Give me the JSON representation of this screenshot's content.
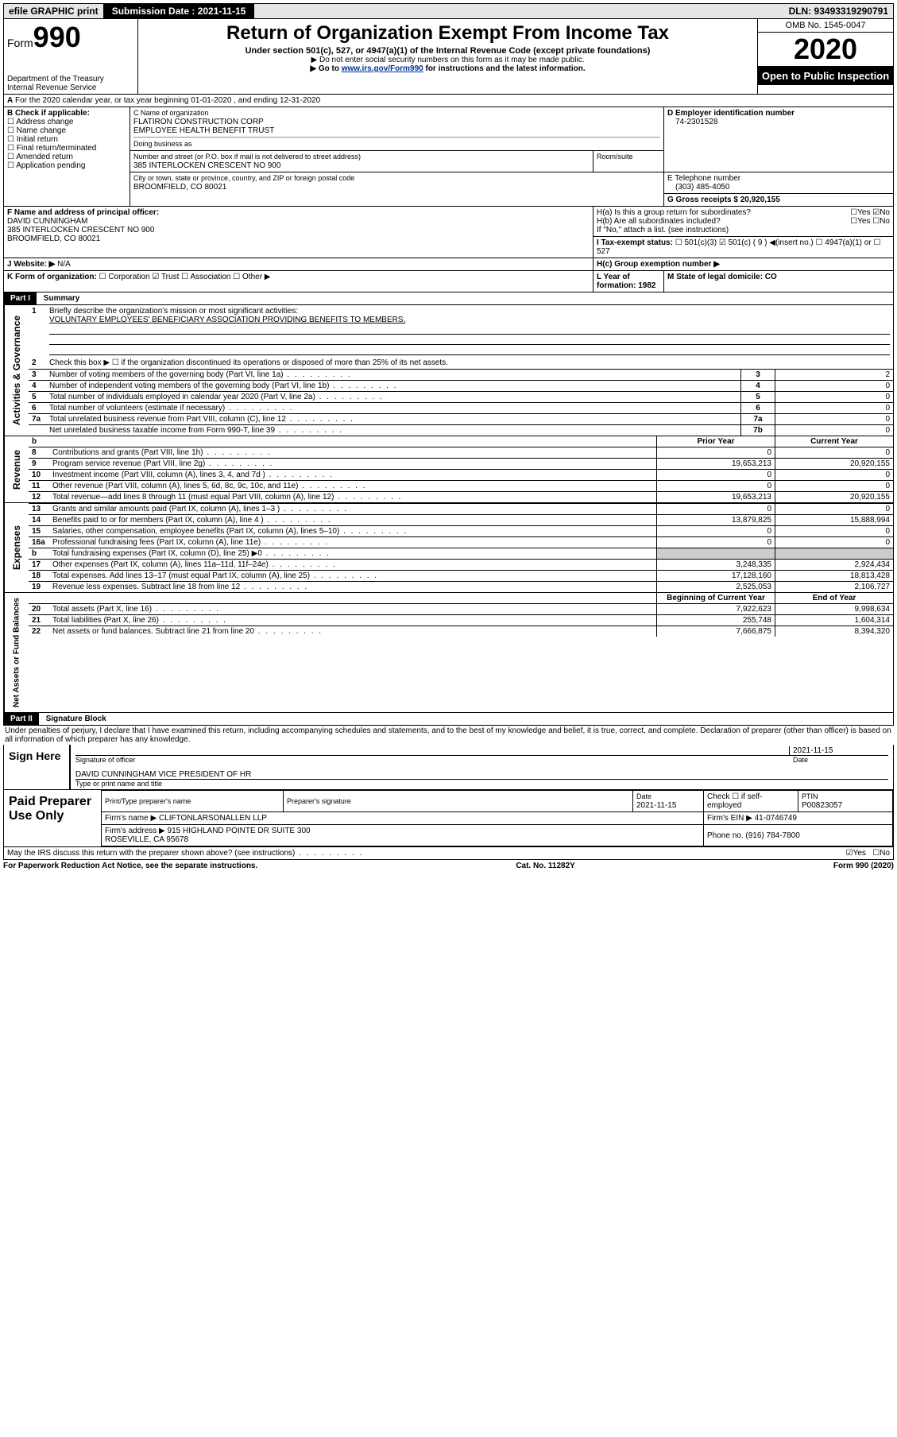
{
  "top": {
    "efile": "efile GRAPHIC print",
    "sub_label": "Submission Date : 2021-11-15",
    "dln": "DLN: 93493319290791"
  },
  "header": {
    "form_label": "Form",
    "form_num": "990",
    "dept": "Department of the Treasury\nInternal Revenue Service",
    "title": "Return of Organization Exempt From Income Tax",
    "sub1": "Under section 501(c), 527, or 4947(a)(1) of the Internal Revenue Code (except private foundations)",
    "sub2": "▶ Do not enter social security numbers on this form as it may be made public.",
    "sub3_pre": "▶ Go to ",
    "sub3_link": "www.irs.gov/Form990",
    "sub3_post": " for instructions and the latest information.",
    "omb": "OMB No. 1545-0047",
    "year": "2020",
    "open": "Open to Public Inspection"
  },
  "A": {
    "text": "For the 2020 calendar year, or tax year beginning 01-01-2020   , and ending 12-31-2020"
  },
  "B": {
    "label": "B Check if applicable:",
    "opts": [
      "Address change",
      "Name change",
      "Initial return",
      "Final return/terminated",
      "Amended return",
      "Application pending"
    ]
  },
  "C": {
    "name_label": "C Name of organization",
    "name": "FLATIRON CONSTRUCTION CORP\nEMPLOYEE HEALTH BENEFIT TRUST",
    "dba_label": "Doing business as",
    "addr_label": "Number and street (or P.O. box if mail is not delivered to street address)",
    "room_label": "Room/suite",
    "addr": "385 INTERLOCKEN CRESCENT NO 900",
    "city_label": "City or town, state or province, country, and ZIP or foreign postal code",
    "city": "BROOMFIELD, CO  80021"
  },
  "D": {
    "label": "D Employer identification number",
    "value": "74-2301528"
  },
  "E": {
    "label": "E Telephone number",
    "value": "(303) 485-4050"
  },
  "G": {
    "label": "G Gross receipts $ 20,920,155"
  },
  "F": {
    "label": "F  Name and address of principal officer:",
    "name": "DAVID CUNNINGHAM\n385 INTERLOCKEN CRESCENT NO 900\nBROOMFIELD, CO  80021"
  },
  "H": {
    "a": "H(a)  Is this a group return for subordinates?",
    "a_yes": "Yes",
    "a_no": "No",
    "b": "H(b)  Are all subordinates included?",
    "b_yes": "Yes",
    "b_no": "No",
    "b_note": "If \"No,\" attach a list. (see instructions)",
    "c": "H(c)  Group exemption number ▶"
  },
  "I": {
    "label": "I  Tax-exempt status:",
    "opts": [
      "501(c)(3)",
      "501(c) ( 9 ) ◀(insert no.)",
      "4947(a)(1) or",
      "527"
    ],
    "checked_idx": 1
  },
  "J": {
    "label": "J  Website: ▶",
    "value": "N/A"
  },
  "K": {
    "label": "K Form of organization:",
    "opts": [
      "Corporation",
      "Trust",
      "Association",
      "Other ▶"
    ],
    "checked_idx": 1
  },
  "L": {
    "label": "L Year of formation: 1982"
  },
  "M": {
    "label": "M State of legal domicile: CO"
  },
  "part1": {
    "header": "Part I",
    "title": "Summary",
    "q1": "Briefly describe the organization's mission or most significant activities:",
    "q1_ans": "VOLUNTARY EMPLOYEES' BENEFICIARY ASSOCIATION PROVIDING BENEFITS TO MEMBERS.",
    "q2": "Check this box ▶ ☐  if the organization discontinued its operations or disposed of more than 25% of its net assets.",
    "rows_gov": [
      {
        "n": "3",
        "t": "Number of voting members of the governing body (Part VI, line 1a)",
        "k": "3",
        "v": "2"
      },
      {
        "n": "4",
        "t": "Number of independent voting members of the governing body (Part VI, line 1b)",
        "k": "4",
        "v": "0"
      },
      {
        "n": "5",
        "t": "Total number of individuals employed in calendar year 2020 (Part V, line 2a)",
        "k": "5",
        "v": "0"
      },
      {
        "n": "6",
        "t": "Total number of volunteers (estimate if necessary)",
        "k": "6",
        "v": "0"
      },
      {
        "n": "7a",
        "t": "Total unrelated business revenue from Part VIII, column (C), line 12",
        "k": "7a",
        "v": "0"
      },
      {
        "n": "",
        "t": "Net unrelated business taxable income from Form 990-T, line 39",
        "k": "7b",
        "v": "0"
      }
    ],
    "col_prior": "Prior Year",
    "col_current": "Current Year",
    "rows_rev": [
      {
        "n": "8",
        "t": "Contributions and grants (Part VIII, line 1h)",
        "p": "0",
        "c": "0"
      },
      {
        "n": "9",
        "t": "Program service revenue (Part VIII, line 2g)",
        "p": "19,653,213",
        "c": "20,920,155"
      },
      {
        "n": "10",
        "t": "Investment income (Part VIII, column (A), lines 3, 4, and 7d )",
        "p": "0",
        "c": "0"
      },
      {
        "n": "11",
        "t": "Other revenue (Part VIII, column (A), lines 5, 6d, 8c, 9c, 10c, and 11e)",
        "p": "0",
        "c": "0"
      },
      {
        "n": "12",
        "t": "Total revenue—add lines 8 through 11 (must equal Part VIII, column (A), line 12)",
        "p": "19,653,213",
        "c": "20,920,155"
      }
    ],
    "rows_exp": [
      {
        "n": "13",
        "t": "Grants and similar amounts paid (Part IX, column (A), lines 1–3 )",
        "p": "0",
        "c": "0"
      },
      {
        "n": "14",
        "t": "Benefits paid to or for members (Part IX, column (A), line 4 )",
        "p": "13,879,825",
        "c": "15,888,994"
      },
      {
        "n": "15",
        "t": "Salaries, other compensation, employee benefits (Part IX, column (A), lines 5–10)",
        "p": "0",
        "c": "0"
      },
      {
        "n": "16a",
        "t": "Professional fundraising fees (Part IX, column (A), line 11e)",
        "p": "0",
        "c": "0"
      },
      {
        "n": "b",
        "t": "Total fundraising expenses (Part IX, column (D), line 25) ▶0",
        "p": "",
        "c": ""
      },
      {
        "n": "17",
        "t": "Other expenses (Part IX, column (A), lines 11a–11d, 11f–24e)",
        "p": "3,248,335",
        "c": "2,924,434"
      },
      {
        "n": "18",
        "t": "Total expenses. Add lines 13–17 (must equal Part IX, column (A), line 25)",
        "p": "17,128,160",
        "c": "18,813,428"
      },
      {
        "n": "19",
        "t": "Revenue less expenses. Subtract line 18 from line 12",
        "p": "2,525,053",
        "c": "2,106,727"
      }
    ],
    "col_begin": "Beginning of Current Year",
    "col_end": "End of Year",
    "rows_net": [
      {
        "n": "20",
        "t": "Total assets (Part X, line 16)",
        "p": "7,922,623",
        "c": "9,998,634"
      },
      {
        "n": "21",
        "t": "Total liabilities (Part X, line 26)",
        "p": "255,748",
        "c": "1,604,314"
      },
      {
        "n": "22",
        "t": "Net assets or fund balances. Subtract line 21 from line 20",
        "p": "7,666,875",
        "c": "8,394,320"
      }
    ]
  },
  "part2": {
    "header": "Part II",
    "title": "Signature Block",
    "perjury": "Under penalties of perjury, I declare that I have examined this return, including accompanying schedules and statements, and to the best of my knowledge and belief, it is true, correct, and complete. Declaration of preparer (other than officer) is based on all information of which preparer has any knowledge.",
    "sign_here": "Sign Here",
    "sig_officer": "Signature of officer",
    "sig_date": "2021-11-15",
    "date_label": "Date",
    "officer_name": "DAVID CUNNINGHAM  VICE PRESIDENT OF HR",
    "type_label": "Type or print name and title",
    "paid": "Paid Preparer Use Only",
    "prep_name_label": "Print/Type preparer's name",
    "prep_sig_label": "Preparer's signature",
    "prep_date_label": "Date",
    "prep_date": "2021-11-15",
    "self_emp": "Check ☐ if self-employed",
    "ptin_label": "PTIN",
    "ptin": "P00823057",
    "firm_name_label": "Firm's name    ▶",
    "firm_name": "CLIFTONLARSONALLEN LLP",
    "firm_ein_label": "Firm's EIN ▶",
    "firm_ein": "41-0746749",
    "firm_addr_label": "Firm's address ▶",
    "firm_addr": "915 HIGHLAND POINTE DR SUITE 300\nROSEVILLE, CA  95678",
    "phone_label": "Phone no.",
    "phone": "(916) 784-7800",
    "discuss": "May the IRS discuss this return with the preparer shown above? (see instructions)",
    "discuss_yes": "Yes",
    "discuss_no": "No"
  },
  "footer": {
    "left": "For Paperwork Reduction Act Notice, see the separate instructions.",
    "mid": "Cat. No. 11282Y",
    "right": "Form 990 (2020)"
  }
}
